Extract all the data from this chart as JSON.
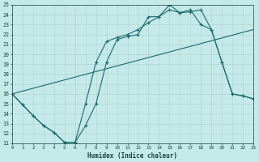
{
  "xlabel": "Humidex (Indice chaleur)",
  "bg_color": "#c5e8e8",
  "grid_color": "#aed4d4",
  "line_color": "#1a6b6b",
  "xlim": [
    0,
    23
  ],
  "ylim": [
    11,
    25
  ],
  "yticks": [
    11,
    12,
    13,
    14,
    15,
    16,
    17,
    18,
    19,
    20,
    21,
    22,
    23,
    24,
    25
  ],
  "xticks": [
    0,
    1,
    2,
    3,
    4,
    5,
    6,
    7,
    8,
    9,
    10,
    11,
    12,
    13,
    14,
    15,
    16,
    17,
    18,
    19,
    20,
    21,
    22,
    23
  ],
  "line1_x": [
    0,
    1,
    2,
    3,
    4,
    5,
    6,
    7,
    8,
    9,
    10,
    11,
    12,
    13,
    14,
    15,
    16,
    17,
    18,
    19,
    20,
    21,
    22,
    23
  ],
  "line1_y": [
    16.0,
    14.9,
    13.8,
    12.8,
    12.1,
    11.1,
    11.1,
    15.0,
    19.2,
    21.3,
    21.7,
    22.0,
    22.5,
    23.2,
    23.8,
    25.0,
    24.2,
    24.3,
    24.5,
    22.5,
    19.2,
    16.0,
    15.8,
    15.5
  ],
  "line2_x": [
    0,
    23
  ],
  "line2_y": [
    16.0,
    22.5
  ],
  "line3_x": [
    0,
    1,
    2,
    3,
    4,
    5,
    6,
    7,
    8,
    9,
    10,
    11,
    12,
    13,
    14,
    15,
    16,
    17,
    18,
    19,
    20,
    21,
    22,
    23
  ],
  "line3_y": [
    16.0,
    14.9,
    13.8,
    12.8,
    12.1,
    11.1,
    11.1,
    12.8,
    15.0,
    19.2,
    21.5,
    21.8,
    22.0,
    23.8,
    23.8,
    24.5,
    24.2,
    24.5,
    23.0,
    22.5,
    19.2,
    16.0,
    15.8,
    15.5
  ],
  "markersize": 3,
  "linewidth": 0.8
}
